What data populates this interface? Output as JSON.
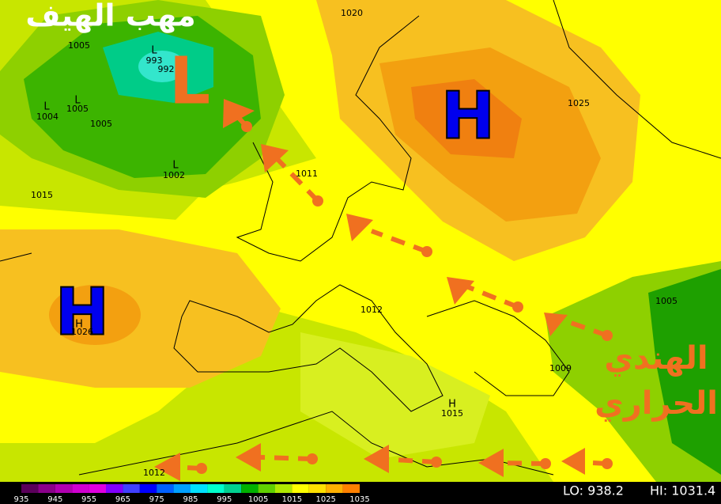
{
  "title": "مهب الهيف",
  "systems": [
    "L",
    "H",
    "H"
  ],
  "markers": [
    "L",
    "L",
    "L",
    "L",
    "H",
    "H"
  ],
  "isobar_labels": [
    "1020",
    "1005",
    "993",
    "992",
    "1005",
    "1004",
    "1005",
    "1002",
    "1011",
    "1015",
    "1025",
    "1026",
    "1012",
    "1005",
    "1009",
    "1015",
    "1012"
  ],
  "annotation": [
    "الهندي",
    "الحراري"
  ],
  "legend": {
    "ticks": [
      935,
      945,
      955,
      965,
      975,
      985,
      995,
      1005,
      1015,
      1025,
      1035
    ],
    "lo": "LO: 938.2",
    "hi": "HI: 1031.4"
  }
}
